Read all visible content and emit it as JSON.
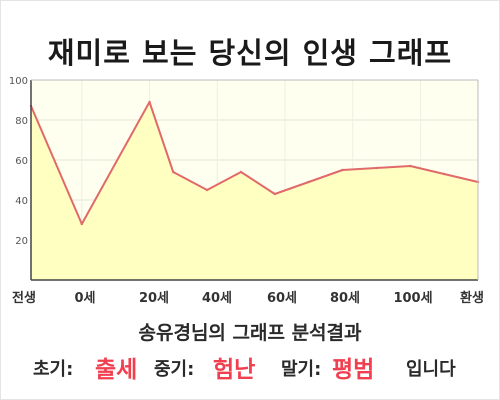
{
  "title": "재미로 보는 당신의 인생 그래프",
  "subtitle": "송유경님의 그래프 분석결과",
  "result": {
    "early_label": "초기:",
    "early_value": "출세",
    "mid_label": "중기:",
    "mid_value": "험난",
    "late_label": "말기:",
    "late_value": "평범",
    "suffix": "입니다"
  },
  "colors": {
    "line": "#e06a6a",
    "fill": "#ffffc2",
    "plot_bg": "#fffff0",
    "accent_text": "#f04050"
  },
  "chart_data": {
    "type": "area",
    "title": "재미로 보는 당신의 인생 그래프",
    "xlabel": "",
    "ylabel": "",
    "ylim": [
      0,
      100
    ],
    "yticks": [
      20,
      40,
      60,
      80,
      100
    ],
    "x_tick_labels": [
      "전생",
      "0세",
      "20세",
      "40세",
      "60세",
      "80세",
      "100세",
      "환생"
    ],
    "grid": true,
    "series": [
      {
        "points": [
          {
            "x": -15,
            "y": 87
          },
          {
            "x": 0,
            "y": 28
          },
          {
            "x": 20,
            "y": 89
          },
          {
            "x": 27,
            "y": 54
          },
          {
            "x": 37,
            "y": 45
          },
          {
            "x": 47,
            "y": 54
          },
          {
            "x": 57,
            "y": 43
          },
          {
            "x": 67,
            "y": 49
          },
          {
            "x": 77,
            "y": 55
          },
          {
            "x": 87,
            "y": 56
          },
          {
            "x": 97,
            "y": 57
          },
          {
            "x": 107,
            "y": 53
          },
          {
            "x": 117,
            "y": 49
          }
        ]
      }
    ]
  }
}
